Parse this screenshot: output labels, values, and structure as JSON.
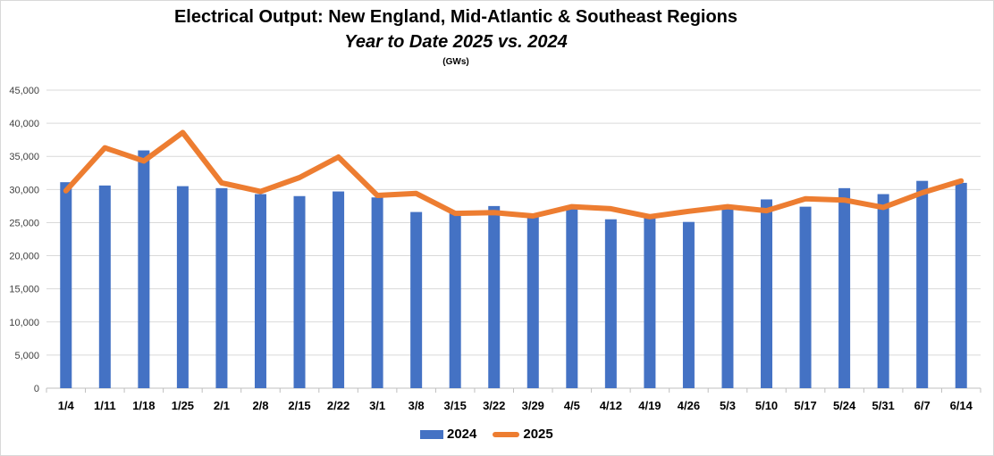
{
  "chart_data": {
    "type": "bar+line",
    "title": "Electrical Output:  New England, Mid-Atlantic & Southeast Regions",
    "subtitle": "Year to Date 2025 vs. 2024",
    "unit": "(GWs)",
    "categories": [
      "1/4",
      "1/11",
      "1/18",
      "1/25",
      "2/1",
      "2/8",
      "2/15",
      "2/22",
      "3/1",
      "3/8",
      "3/15",
      "3/22",
      "3/29",
      "4/5",
      "4/12",
      "4/19",
      "4/26",
      "5/3",
      "5/10",
      "5/17",
      "5/24",
      "5/31",
      "6/7",
      "6/14"
    ],
    "series": [
      {
        "name": "2024",
        "type": "bar",
        "color": "#4472c4",
        "values": [
          31100,
          30600,
          35900,
          30500,
          30200,
          29300,
          29000,
          29700,
          28800,
          26600,
          26400,
          27500,
          26200,
          27400,
          25500,
          25800,
          25100,
          27200,
          28500,
          27400,
          30200,
          29300,
          31300,
          31000
        ]
      },
      {
        "name": "2025",
        "type": "line",
        "color": "#ed7d31",
        "values": [
          29800,
          36300,
          34300,
          38600,
          31000,
          29700,
          31800,
          34900,
          29100,
          29400,
          26400,
          26500,
          26000,
          27400,
          27100,
          25900,
          26700,
          27400,
          26800,
          28600,
          28400,
          27300,
          29500,
          31300
        ]
      }
    ],
    "ylim": [
      0,
      45000
    ],
    "yticks": [
      "0",
      "5,000",
      "10,000",
      "15,000",
      "20,000",
      "25,000",
      "30,000",
      "35,000",
      "40,000",
      "45,000"
    ],
    "grid": true,
    "legend": "bottom"
  }
}
